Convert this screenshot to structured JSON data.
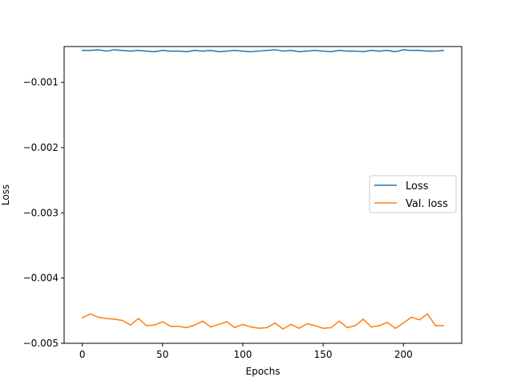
{
  "chart_data": {
    "type": "line",
    "xlabel": "Epochs",
    "ylabel": "Loss",
    "xlim": [
      -11.3,
      236.3
    ],
    "ylim": [
      -0.005,
      -0.00045
    ],
    "xticks": [
      0,
      50,
      100,
      150,
      200
    ],
    "yticks": [
      -0.005,
      -0.004,
      -0.003,
      -0.002,
      -0.001
    ],
    "ytick_labels": [
      "−0.005",
      "−0.004",
      "−0.003",
      "−0.002",
      "−0.001"
    ],
    "grid": false,
    "legend_position": "center-right",
    "series": [
      {
        "name": "Loss",
        "color": "#1f77b4",
        "x": [
          0,
          5,
          10,
          15,
          20,
          25,
          30,
          35,
          40,
          45,
          50,
          55,
          60,
          65,
          70,
          75,
          80,
          85,
          90,
          95,
          100,
          105,
          110,
          115,
          120,
          125,
          130,
          135,
          140,
          145,
          150,
          155,
          160,
          165,
          170,
          175,
          180,
          185,
          190,
          195,
          200,
          205,
          210,
          215,
          220,
          225
        ],
        "y": [
          -0.00051,
          -0.00051,
          -0.0005,
          -0.00052,
          -0.0005,
          -0.00051,
          -0.00052,
          -0.00051,
          -0.00052,
          -0.00053,
          -0.00051,
          -0.00052,
          -0.00052,
          -0.00053,
          -0.00051,
          -0.00052,
          -0.00051,
          -0.00053,
          -0.00052,
          -0.00051,
          -0.00052,
          -0.00053,
          -0.00052,
          -0.00051,
          -0.0005,
          -0.00052,
          -0.00051,
          -0.00053,
          -0.00052,
          -0.00051,
          -0.00052,
          -0.00053,
          -0.00051,
          -0.00052,
          -0.00052,
          -0.00053,
          -0.00051,
          -0.00052,
          -0.00051,
          -0.00053,
          -0.0005,
          -0.00051,
          -0.00051,
          -0.00052,
          -0.00052,
          -0.00051
        ]
      },
      {
        "name": "Val. loss",
        "color": "#ff7f0e",
        "x": [
          0,
          5,
          10,
          15,
          20,
          25,
          30,
          35,
          40,
          45,
          50,
          55,
          60,
          65,
          70,
          75,
          80,
          85,
          90,
          95,
          100,
          105,
          110,
          115,
          120,
          125,
          130,
          135,
          140,
          145,
          150,
          155,
          160,
          165,
          170,
          175,
          180,
          185,
          190,
          195,
          200,
          205,
          210,
          215,
          220,
          225
        ],
        "y": [
          -0.00461,
          -0.00455,
          -0.0046,
          -0.00462,
          -0.00463,
          -0.00465,
          -0.00472,
          -0.00462,
          -0.00473,
          -0.00472,
          -0.00467,
          -0.00474,
          -0.00474,
          -0.00476,
          -0.00472,
          -0.00466,
          -0.00475,
          -0.00471,
          -0.00467,
          -0.00476,
          -0.00471,
          -0.00475,
          -0.00477,
          -0.00476,
          -0.00469,
          -0.00478,
          -0.00471,
          -0.00477,
          -0.0047,
          -0.00473,
          -0.00477,
          -0.00476,
          -0.00466,
          -0.00476,
          -0.00473,
          -0.00463,
          -0.00475,
          -0.00473,
          -0.00468,
          -0.00477,
          -0.00469,
          -0.0046,
          -0.00464,
          -0.00455,
          -0.00473,
          -0.00473
        ]
      }
    ]
  }
}
